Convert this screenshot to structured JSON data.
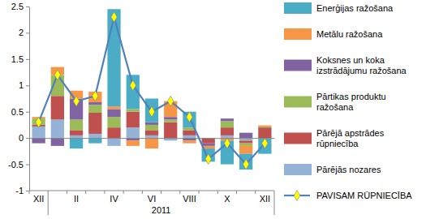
{
  "chart_data": {
    "type": "bar",
    "stacked": true,
    "xlabel": "2011",
    "categories": [
      "XII",
      null,
      "II",
      null,
      "IV",
      null,
      "VI",
      null,
      "VIII",
      null,
      "X",
      null,
      "XII"
    ],
    "ylim": [
      -1,
      2.5
    ],
    "yticks": [
      -1,
      -0.5,
      0,
      0.5,
      1,
      1.5,
      2,
      2.5
    ],
    "grid": false,
    "legend": "right",
    "series": [
      {
        "name": "Enerģijas ražošana",
        "color": "#4BACC6",
        "values": [
          0,
          0,
          -0.2,
          -0.1,
          1.85,
          0.65,
          0.45,
          0,
          0.3,
          -0.25,
          -0.45,
          -0.3,
          -0.3
        ]
      },
      {
        "name": "Metālu ražošana",
        "color": "#F79646",
        "values": [
          0.03,
          0.15,
          0.15,
          0.2,
          0.05,
          -0.1,
          -0.2,
          0.3,
          -0.05,
          -0.05,
          -0.05,
          -0.15,
          0.02
        ]
      },
      {
        "name": "Koksnes un koka izstrādājumu ražošana",
        "color": "#8064A2",
        "values": [
          -0.1,
          -0.15,
          0.4,
          0.05,
          0.15,
          -0.05,
          0.05,
          0.05,
          -0.05,
          -0.05,
          0.05,
          0.1,
          0
        ]
      },
      {
        "name": "Pārtikas produktu ražošana",
        "color": "#9BBB59",
        "values": [
          0.12,
          0.4,
          0.2,
          0.15,
          0.2,
          0.05,
          0.1,
          0.05,
          0.05,
          0,
          0.12,
          -0.05,
          0.02
        ]
      },
      {
        "name": "Pārējā apstrādes rūpniecība",
        "color": "#C0504D",
        "values": [
          0.03,
          0.45,
          0.1,
          0.4,
          0.2,
          0.3,
          0.1,
          0.3,
          0.1,
          -0.1,
          0.15,
          -0.05,
          0.2
        ]
      },
      {
        "name": "Pārējās nozares",
        "color": "#95B3D7",
        "values": [
          0.22,
          0.35,
          0.05,
          0.08,
          -0.15,
          0.2,
          0.05,
          -0.05,
          0.05,
          0,
          0.05,
          -0.05,
          0
        ]
      },
      {
        "name": "PAVISAM RŪPNIECĪBA",
        "type": "line",
        "color": "#4F81BD",
        "marker": "diamond",
        "values": [
          0.3,
          1.2,
          0.7,
          0.8,
          2.3,
          1.0,
          0.5,
          0.7,
          0.4,
          -0.4,
          -0.1,
          -0.5,
          -0.1
        ]
      }
    ]
  }
}
